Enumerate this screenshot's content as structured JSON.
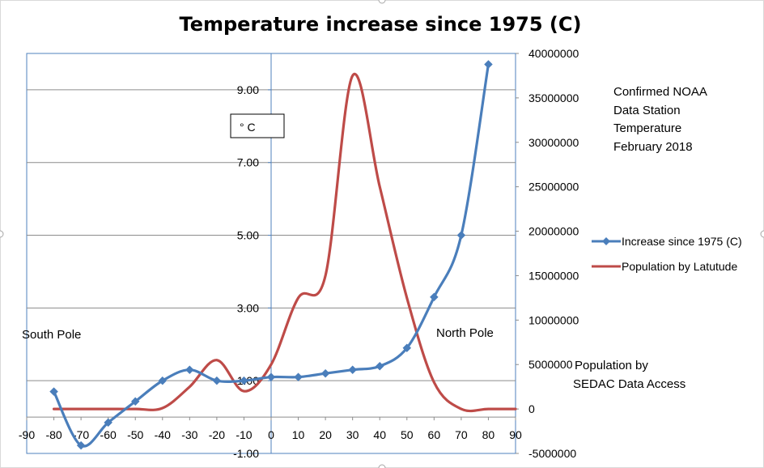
{
  "chart_data": {
    "type": "line",
    "title": "Temperature increase since 1975 (C)",
    "unit_box": "° C",
    "x_axis": {
      "min": -90,
      "max": 90,
      "ticks": [
        -90,
        -80,
        -70,
        -60,
        -50,
        -40,
        -30,
        -20,
        -10,
        0,
        10,
        20,
        30,
        40,
        50,
        60,
        70,
        80,
        90
      ]
    },
    "y_axis_left": {
      "min": -1,
      "max": 10,
      "tick_values": [
        -1,
        1,
        3,
        5,
        7,
        9
      ],
      "tick_labels": [
        "-1.00",
        "1.00",
        "3.00",
        "5.00",
        "7.00",
        "9.00"
      ],
      "gridlines": true
    },
    "y_axis_right": {
      "min": -5000000,
      "max": 40000000,
      "ticks": [
        -5000000,
        0,
        5000000,
        10000000,
        15000000,
        20000000,
        25000000,
        30000000,
        35000000,
        40000000
      ]
    },
    "series": [
      {
        "name": "Increase since 1975 (C)",
        "axis": "left",
        "color": "#4a7ebb",
        "marker": "diamond",
        "smooth": true,
        "points": [
          [
            -80,
            0.7
          ],
          [
            -70,
            -0.78
          ],
          [
            -60,
            -0.15
          ],
          [
            -50,
            0.43
          ],
          [
            -40,
            1.0
          ],
          [
            -30,
            1.3
          ],
          [
            -20,
            1.0
          ],
          [
            -10,
            1.0
          ],
          [
            0,
            1.1
          ],
          [
            10,
            1.1
          ],
          [
            20,
            1.2
          ],
          [
            30,
            1.3
          ],
          [
            40,
            1.4
          ],
          [
            50,
            1.9
          ],
          [
            60,
            3.3
          ],
          [
            70,
            5.0
          ],
          [
            80,
            9.7
          ]
        ]
      },
      {
        "name": "Population by Latutude",
        "axis": "right",
        "color": "#be4b48",
        "marker": "none",
        "smooth": true,
        "points": [
          [
            -80,
            0
          ],
          [
            -70,
            0
          ],
          [
            -60,
            0
          ],
          [
            -50,
            0
          ],
          [
            -40,
            100000
          ],
          [
            -30,
            2500000
          ],
          [
            -20,
            5500000
          ],
          [
            -10,
            2000000
          ],
          [
            0,
            5000000
          ],
          [
            10,
            12500000
          ],
          [
            20,
            15000000
          ],
          [
            30,
            37500000
          ],
          [
            40,
            25000000
          ],
          [
            50,
            12500000
          ],
          [
            60,
            3000000
          ],
          [
            70,
            0
          ],
          [
            80,
            0
          ],
          [
            90,
            0
          ]
        ]
      }
    ],
    "legend": {
      "position": "right",
      "entries": [
        "Increase since 1975 (C)",
        "Population by Latutude"
      ]
    },
    "annotations": {
      "noaa": [
        "Confirmed NOAA",
        "Data Station",
        "Temperature",
        "February 2018"
      ],
      "population_source": [
        "Population by",
        "SEDAC Data Access"
      ],
      "south_pole": "South Pole",
      "north_pole": "North Pole"
    }
  }
}
